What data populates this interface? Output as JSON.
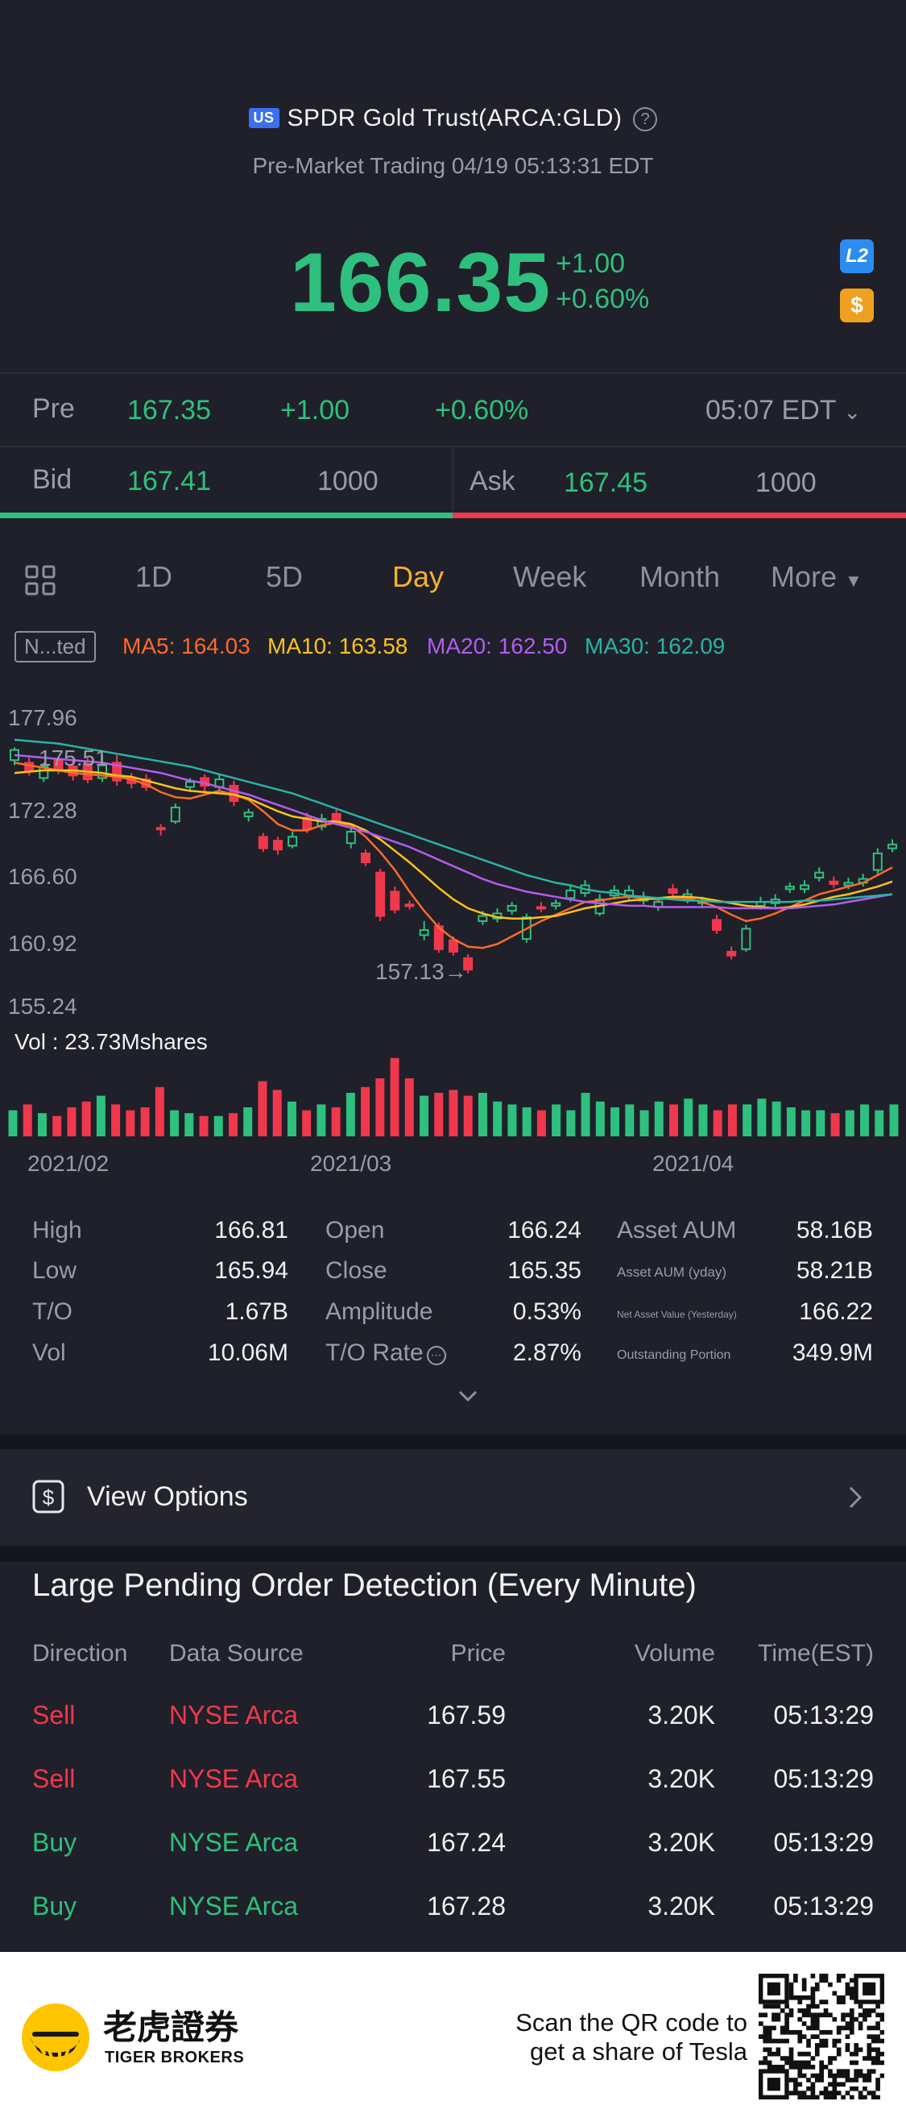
{
  "header": {
    "market_badge": "US",
    "title": "SPDR Gold Trust(ARCA:GLD)",
    "subtitle": "Pre-Market Trading 04/19 05:13:31 EDT"
  },
  "quote": {
    "price": "166.35",
    "change": "+1.00",
    "change_pct": "+0.60%",
    "level2_label": "L2",
    "dollar_label": "$"
  },
  "premarket": {
    "label": "Pre",
    "price": "167.35",
    "change": "+1.00",
    "change_pct": "+0.60%",
    "time": "05:07 EDT"
  },
  "bidask": {
    "bid_label": "Bid",
    "bid_price": "167.41",
    "bid_size": "1000",
    "ask_label": "Ask",
    "ask_price": "167.45",
    "ask_size": "1000"
  },
  "tabs": [
    "1D",
    "5D",
    "Day",
    "Week",
    "Month",
    "More"
  ],
  "active_tab": "Day",
  "ma": {
    "mode": "N...ted",
    "ma5": "MA5: 164.03",
    "ma10": "MA10: 163.58",
    "ma20": "MA20: 162.50",
    "ma30": "MA30: 162.09",
    "colors": {
      "ma5": "#ff6a2b",
      "ma10": "#ffc21a",
      "ma20": "#b45cf0",
      "ma30": "#2ab3a4"
    }
  },
  "chart": {
    "y_ticks": [
      "177.96",
      "172.28",
      "166.60",
      "160.92",
      "155.24"
    ],
    "high_marker": "175.51",
    "low_marker": "157.13→",
    "vol_label": "Vol  : 23.73Mshares",
    "x_ticks": [
      "2021/02",
      "2021/03",
      "2021/04"
    ]
  },
  "chart_data": {
    "type": "candlestick",
    "ylim": [
      155.24,
      177.96
    ],
    "candles": [
      {
        "o": 174.6,
        "c": 175.4,
        "h": 175.6,
        "l": 174.2,
        "up": true
      },
      {
        "o": 174.4,
        "c": 173.7,
        "h": 174.8,
        "l": 173.4,
        "up": false
      },
      {
        "o": 173.2,
        "c": 174.1,
        "h": 174.4,
        "l": 172.9,
        "up": true
      },
      {
        "o": 174.6,
        "c": 173.9,
        "h": 174.9,
        "l": 173.5,
        "up": false
      },
      {
        "o": 174.1,
        "c": 173.4,
        "h": 174.6,
        "l": 173.0,
        "up": false
      },
      {
        "o": 174.3,
        "c": 173.1,
        "h": 174.8,
        "l": 172.8,
        "up": false
      },
      {
        "o": 173.2,
        "c": 174.2,
        "h": 175.0,
        "l": 172.9,
        "up": true
      },
      {
        "o": 174.4,
        "c": 173.0,
        "h": 175.0,
        "l": 172.6,
        "up": false
      },
      {
        "o": 173.2,
        "c": 172.8,
        "h": 173.6,
        "l": 172.4,
        "up": false
      },
      {
        "o": 173.1,
        "c": 172.5,
        "h": 173.5,
        "l": 172.2,
        "up": false
      },
      {
        "o": 169.2,
        "c": 169.3,
        "h": 169.6,
        "l": 168.7,
        "up": false
      },
      {
        "o": 169.8,
        "c": 170.9,
        "h": 171.2,
        "l": 169.6,
        "up": true
      },
      {
        "o": 172.5,
        "c": 172.9,
        "h": 173.2,
        "l": 172.1,
        "up": true
      },
      {
        "o": 173.2,
        "c": 172.6,
        "h": 173.5,
        "l": 172.1,
        "up": false
      },
      {
        "o": 172.5,
        "c": 173.1,
        "h": 173.5,
        "l": 172.2,
        "up": true
      },
      {
        "o": 172.6,
        "c": 171.4,
        "h": 173.0,
        "l": 171.0,
        "up": false
      },
      {
        "o": 170.2,
        "c": 170.5,
        "h": 170.8,
        "l": 169.8,
        "up": true
      },
      {
        "o": 168.6,
        "c": 167.7,
        "h": 168.9,
        "l": 167.4,
        "up": false
      },
      {
        "o": 168.3,
        "c": 167.6,
        "h": 168.6,
        "l": 167.2,
        "up": false
      },
      {
        "o": 167.9,
        "c": 168.6,
        "h": 169.0,
        "l": 167.7,
        "up": true
      },
      {
        "o": 170.1,
        "c": 169.2,
        "h": 170.5,
        "l": 168.9,
        "up": false
      },
      {
        "o": 169.4,
        "c": 170.0,
        "h": 170.4,
        "l": 169.1,
        "up": true
      },
      {
        "o": 170.4,
        "c": 169.8,
        "h": 170.7,
        "l": 169.5,
        "up": false
      },
      {
        "o": 168.1,
        "c": 169.0,
        "h": 169.4,
        "l": 167.7,
        "up": true
      },
      {
        "o": 167.3,
        "c": 166.6,
        "h": 167.6,
        "l": 166.3,
        "up": false
      },
      {
        "o": 165.8,
        "c": 162.4,
        "h": 166.1,
        "l": 162.0,
        "up": false
      },
      {
        "o": 164.3,
        "c": 162.9,
        "h": 164.7,
        "l": 162.6,
        "up": false
      },
      {
        "o": 163.3,
        "c": 163.3,
        "h": 163.6,
        "l": 162.9,
        "up": false
      },
      {
        "o": 160.9,
        "c": 161.3,
        "h": 162.0,
        "l": 160.5,
        "up": true
      },
      {
        "o": 161.6,
        "c": 159.8,
        "h": 161.9,
        "l": 159.5,
        "up": false
      },
      {
        "o": 160.5,
        "c": 159.6,
        "h": 160.8,
        "l": 159.3,
        "up": false
      },
      {
        "o": 159.1,
        "c": 158.2,
        "h": 159.4,
        "l": 157.9,
        "up": false
      },
      {
        "o": 162.4,
        "c": 162.0,
        "h": 162.8,
        "l": 161.7,
        "up": true
      },
      {
        "o": 162.6,
        "c": 162.2,
        "h": 163.0,
        "l": 161.9,
        "up": true
      },
      {
        "o": 163.2,
        "c": 162.8,
        "h": 163.5,
        "l": 162.5,
        "up": true
      },
      {
        "o": 160.6,
        "c": 162.3,
        "h": 162.6,
        "l": 160.3,
        "up": true
      },
      {
        "o": 163.0,
        "c": 163.1,
        "h": 163.5,
        "l": 162.7,
        "up": false
      },
      {
        "o": 163.2,
        "c": 163.4,
        "h": 163.7,
        "l": 162.9,
        "up": true
      },
      {
        "o": 163.8,
        "c": 164.4,
        "h": 164.9,
        "l": 163.5,
        "up": true
      },
      {
        "o": 164.2,
        "c": 164.8,
        "h": 165.2,
        "l": 163.9,
        "up": true
      },
      {
        "o": 162.6,
        "c": 163.7,
        "h": 164.1,
        "l": 162.4,
        "up": true
      },
      {
        "o": 164.0,
        "c": 164.4,
        "h": 164.8,
        "l": 163.7,
        "up": true
      },
      {
        "o": 164.4,
        "c": 164.0,
        "h": 164.8,
        "l": 163.7,
        "up": true
      },
      {
        "o": 163.9,
        "c": 163.6,
        "h": 164.3,
        "l": 163.3,
        "up": true
      },
      {
        "o": 163.1,
        "c": 163.5,
        "h": 163.9,
        "l": 162.8,
        "up": true
      },
      {
        "o": 164.2,
        "c": 164.5,
        "h": 164.9,
        "l": 163.9,
        "up": false
      },
      {
        "o": 163.7,
        "c": 164.1,
        "h": 164.5,
        "l": 163.4,
        "up": true
      },
      {
        "o": 163.6,
        "c": 163.4,
        "h": 163.9,
        "l": 163.1,
        "up": true
      },
      {
        "o": 161.3,
        "c": 162.1,
        "h": 162.5,
        "l": 161.0,
        "up": false
      },
      {
        "o": 159.6,
        "c": 159.3,
        "h": 160.0,
        "l": 159.0,
        "up": false
      },
      {
        "o": 159.8,
        "c": 161.4,
        "h": 161.7,
        "l": 159.6,
        "up": true
      },
      {
        "o": 163.2,
        "c": 163.5,
        "h": 163.9,
        "l": 162.9,
        "up": true
      },
      {
        "o": 163.4,
        "c": 163.7,
        "h": 164.1,
        "l": 163.1,
        "up": true
      },
      {
        "o": 164.5,
        "c": 164.7,
        "h": 165.0,
        "l": 164.2,
        "up": true
      },
      {
        "o": 164.5,
        "c": 164.8,
        "h": 165.2,
        "l": 164.2,
        "up": true
      },
      {
        "o": 165.4,
        "c": 165.8,
        "h": 166.2,
        "l": 165.1,
        "up": true
      },
      {
        "o": 164.9,
        "c": 165.1,
        "h": 165.5,
        "l": 164.6,
        "up": false
      },
      {
        "o": 164.8,
        "c": 165.0,
        "h": 165.4,
        "l": 164.5,
        "up": true
      },
      {
        "o": 165.0,
        "c": 165.3,
        "h": 165.7,
        "l": 164.7,
        "up": true
      },
      {
        "o": 166.0,
        "c": 167.3,
        "h": 167.7,
        "l": 165.7,
        "up": true
      },
      {
        "o": 167.7,
        "c": 168.0,
        "h": 168.4,
        "l": 167.4,
        "up": true
      }
    ],
    "ma_lines": {
      "MA5": [
        174.4,
        174.2,
        174.0,
        173.8,
        173.6,
        173.5,
        173.4,
        173.3,
        173.1,
        172.7,
        172.1,
        171.7,
        171.6,
        171.9,
        172.2,
        171.9,
        171.5,
        170.6,
        169.6,
        169.1,
        169.1,
        169.5,
        169.7,
        169.5,
        168.6,
        167.4,
        166.0,
        164.3,
        162.8,
        161.5,
        160.6,
        160.0,
        159.9,
        160.2,
        160.8,
        161.4,
        162.0,
        162.5,
        163.0,
        163.5,
        163.6,
        163.8,
        163.9,
        163.8,
        163.7,
        163.8,
        163.8,
        163.5,
        163.1,
        162.5,
        162.0,
        162.2,
        162.6,
        163.1,
        163.6,
        164.1,
        164.4,
        164.7,
        165.0,
        165.6,
        166.2
      ],
      "MA10": [
        173.6,
        173.7,
        173.8,
        173.8,
        173.8,
        173.7,
        173.6,
        173.4,
        173.3,
        173.0,
        172.7,
        172.4,
        172.2,
        172.1,
        172.0,
        171.9,
        171.6,
        171.1,
        170.6,
        170.2,
        170.0,
        169.8,
        169.8,
        169.6,
        169.1,
        168.4,
        167.5,
        166.6,
        165.6,
        164.6,
        163.7,
        163.0,
        162.6,
        162.3,
        162.2,
        162.2,
        162.3,
        162.4,
        162.7,
        163.0,
        163.2,
        163.4,
        163.6,
        163.7,
        163.8,
        163.9,
        163.9,
        163.8,
        163.6,
        163.4,
        163.2,
        163.1,
        163.0,
        163.1,
        163.3,
        163.6,
        163.9,
        164.1,
        164.4,
        164.7,
        165.1
      ],
      "MA20": [
        175.0,
        174.9,
        174.8,
        174.7,
        174.6,
        174.5,
        174.4,
        174.2,
        174.0,
        173.8,
        173.6,
        173.3,
        173.0,
        172.8,
        172.5,
        172.2,
        171.9,
        171.5,
        171.1,
        170.7,
        170.3,
        169.9,
        169.6,
        169.3,
        169.0,
        168.6,
        168.2,
        167.8,
        167.3,
        166.8,
        166.3,
        165.8,
        165.3,
        164.9,
        164.6,
        164.3,
        164.1,
        163.9,
        163.7,
        163.5,
        163.4,
        163.3,
        163.2,
        163.2,
        163.1,
        163.1,
        163.1,
        163.1,
        163.1,
        163.0,
        163.0,
        163.0,
        163.0,
        163.0,
        163.1,
        163.2,
        163.3,
        163.5,
        163.7,
        163.9,
        164.1
      ],
      "MA30": [
        176.2,
        176.1,
        176.0,
        175.9,
        175.7,
        175.5,
        175.3,
        175.1,
        174.9,
        174.7,
        174.5,
        174.3,
        174.1,
        173.8,
        173.5,
        173.2,
        172.9,
        172.6,
        172.3,
        172.0,
        171.6,
        171.2,
        170.8,
        170.4,
        170.0,
        169.6,
        169.2,
        168.8,
        168.4,
        168.0,
        167.6,
        167.2,
        166.8,
        166.4,
        166.0,
        165.6,
        165.3,
        165.0,
        164.8,
        164.5,
        164.3,
        164.2,
        164.0,
        163.9,
        163.8,
        163.7,
        163.6,
        163.6,
        163.5,
        163.5,
        163.5,
        163.5,
        163.5,
        163.5,
        163.6,
        163.6,
        163.7,
        163.8,
        163.9,
        164.0,
        164.1
      ]
    },
    "volume_relative": [
      0.45,
      0.55,
      0.4,
      0.35,
      0.5,
      0.6,
      0.7,
      0.55,
      0.45,
      0.5,
      0.85,
      0.45,
      0.4,
      0.35,
      0.35,
      0.4,
      0.5,
      0.95,
      0.8,
      0.6,
      0.45,
      0.55,
      0.5,
      0.75,
      0.85,
      1.0,
      1.35,
      1.0,
      0.7,
      0.75,
      0.8,
      0.7,
      0.75,
      0.6,
      0.55,
      0.5,
      0.45,
      0.55,
      0.45,
      0.75,
      0.6,
      0.5,
      0.55,
      0.45,
      0.6,
      0.55,
      0.65,
      0.55,
      0.45,
      0.55,
      0.55,
      0.65,
      0.6,
      0.5,
      0.45,
      0.45,
      0.4,
      0.45,
      0.55,
      0.45,
      0.55
    ]
  },
  "stats": [
    {
      "label": "High",
      "value": "166.81"
    },
    {
      "label": "Low",
      "value": "165.94"
    },
    {
      "label": "T/O",
      "value": "1.67B"
    },
    {
      "label": "Vol",
      "value": "10.06M"
    },
    {
      "label": "Open",
      "value": "166.24"
    },
    {
      "label": "Close",
      "value": "165.35"
    },
    {
      "label": "Amplitude",
      "value": "0.53%"
    },
    {
      "label": "T/O Rate",
      "value": "2.87%"
    },
    {
      "label": "Asset AUM",
      "value": "58.16B"
    },
    {
      "label": "Asset AUM (yday)",
      "value": "58.21B"
    },
    {
      "label": "Net Asset Value (Yesterday)",
      "value": "166.22"
    },
    {
      "label": "Outstanding Portion",
      "value": "349.9M"
    }
  ],
  "options": {
    "label": "View Options"
  },
  "orders": {
    "title": "Large Pending Order Detection (Every Minute)",
    "headers": [
      "Direction",
      "Data Source",
      "Price",
      "Volume",
      "Time(EST)"
    ],
    "rows": [
      {
        "dir": "Sell",
        "src": "NYSE Arca",
        "price": "167.59",
        "vol": "3.20K",
        "time": "05:13:29"
      },
      {
        "dir": "Sell",
        "src": "NYSE Arca",
        "price": "167.55",
        "vol": "3.20K",
        "time": "05:13:29"
      },
      {
        "dir": "Buy",
        "src": "NYSE Arca",
        "price": "167.24",
        "vol": "3.20K",
        "time": "05:13:29"
      },
      {
        "dir": "Buy",
        "src": "NYSE Arca",
        "price": "167.28",
        "vol": "3.20K",
        "time": "05:13:29"
      }
    ]
  },
  "footer": {
    "brand_cn": "老虎證券",
    "brand_en": "TIGER BROKERS",
    "cta_line1": "Scan the QR code to",
    "cta_line2": "get a share of Tesla"
  }
}
